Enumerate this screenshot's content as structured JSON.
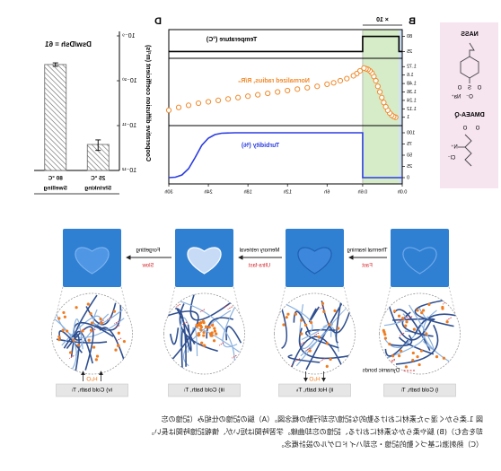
{
  "panel_labels": [
    "B",
    "D"
  ],
  "structures": [
    {
      "name": "NASS",
      "atoms": [
        "S",
        "O",
        "O",
        "O⁻",
        "Na⁺"
      ]
    },
    {
      "name": "DMAEA-Q",
      "atoms": [
        "O",
        "O",
        "N⁺",
        "Cl⁻"
      ]
    }
  ],
  "chart_data": [
    {
      "type": "line",
      "xlim": [
        0,
        30
      ],
      "xticks": [
        {
          "value": 0,
          "label": "0.0h"
        },
        {
          "value": 0.6,
          "label": "0.6h"
        },
        {
          "value": 6,
          "label": "6h"
        },
        {
          "value": 12,
          "label": "12h"
        },
        {
          "value": 18,
          "label": "18h"
        },
        {
          "value": 24,
          "label": "24h"
        },
        {
          "value": 30,
          "label": "30h"
        }
      ],
      "zoom": {
        "range": [
          0,
          0.6
        ],
        "factor": {
          "value": 10,
          "label": "× 10"
        }
      },
      "spans": [
        {
          "x": [
            0,
            0.05
          ],
          "color": "#cfe0f6"
        },
        {
          "x": [
            0.05,
            0.6
          ],
          "color": "#d6ecc9"
        }
      ],
      "panels": [
        {
          "label": "Temperature (°C)",
          "label_color": "#000",
          "ylim": [
            10,
            95
          ],
          "yticks": [
            25,
            80
          ],
          "series": [
            {
              "color": "#000",
              "marker": "none",
              "x": [
                0,
                0.05,
                0.05,
                0.6,
                0.6,
                30
              ],
              "values": [
                25,
                25,
                80,
                80,
                25,
                25
              ]
            }
          ]
        },
        {
          "label": "Normalized radius, R/R₀",
          "label_color": "#f08a2c",
          "ylim": [
            0.92,
            1.8
          ],
          "yticks": [
            1.0,
            1.12,
            1.24,
            1.36,
            1.48,
            1.6,
            1.72
          ],
          "series": [
            {
              "color": "#f08a2c",
              "marker": "circle",
              "x": [
                0.1,
                0.13,
                0.16,
                0.19,
                0.22,
                0.25,
                0.28,
                0.31,
                0.34,
                0.37,
                0.4,
                0.43,
                0.46,
                0.49,
                0.52,
                0.55,
                0.58,
                1,
                1.5,
                2,
                3,
                4,
                5,
                6,
                7.5,
                9,
                10.5,
                12,
                13.5,
                15,
                16.5,
                18,
                19.5,
                21,
                22.5,
                24,
                25.5,
                27,
                28.5,
                30
              ],
              "values": [
                1.0,
                1.01,
                1.03,
                1.06,
                1.1,
                1.15,
                1.21,
                1.28,
                1.36,
                1.44,
                1.52,
                1.58,
                1.63,
                1.66,
                1.68,
                1.69,
                1.7,
                1.66,
                1.62,
                1.59,
                1.55,
                1.52,
                1.49,
                1.47,
                1.44,
                1.42,
                1.4,
                1.38,
                1.36,
                1.34,
                1.32,
                1.3,
                1.28,
                1.26,
                1.24,
                1.22,
                1.2,
                1.17,
                1.14,
                1.1
              ]
            }
          ]
        },
        {
          "label": "Turbidity (%)",
          "label_color": "#2b3de0",
          "ylim": [
            -8,
            110
          ],
          "yticks": [
            0,
            25,
            50,
            75,
            100
          ],
          "series": [
            {
              "color": "#2b3de0",
              "marker": "none",
              "x": [
                0,
                0.6,
                0.6,
                20,
                22,
                23,
                24,
                25,
                26,
                27,
                28,
                29,
                30
              ],
              "values": [
                0,
                0,
                100,
                100,
                99,
                96,
                88,
                72,
                45,
                20,
                6,
                1,
                0
              ]
            }
          ]
        }
      ]
    },
    {
      "type": "bar",
      "log": true,
      "annotation": "Dsw/Dsh = 61",
      "ylabel": "Cooperative diffusion coefficient (m²/s)",
      "ylim": [
        1e-12,
        1e-09
      ],
      "yticks": [
        {
          "value": 1e-12,
          "label": "10⁻¹²"
        },
        {
          "value": 1e-11,
          "label": "10⁻¹¹"
        },
        {
          "value": 1e-10,
          "label": "10⁻¹⁰"
        },
        {
          "value": 1e-09,
          "label": "10⁻⁹"
        }
      ],
      "categories": [
        "25 °C",
        "80 °C"
      ],
      "category_notes": [
        "Shrinking",
        "Swelling"
      ],
      "values": [
        3.8e-12,
        2.3e-10
      ],
      "errors": [
        1e-12,
        2e-11
      ],
      "color": "#666"
    }
  ],
  "schematic": {
    "states": [
      "i) Cold bath, Tₗ",
      "ii) Hot bath, Tₕ",
      "iii) Cold bath, Tₗ",
      "iv) Cold bath, Tₗ"
    ],
    "transitions": [
      {
        "label": "Thermal learning",
        "speed": "Fast"
      },
      {
        "label": "Memory retrieval",
        "speed": "Ultra-fast"
      },
      {
        "label": "Forgetting",
        "speed": "Slow"
      }
    ],
    "legend": "Dynamic bonds",
    "water": [
      "H₂O",
      "H₂O"
    ]
  },
  "caption": [
    "図 1.柔らかく湿った素材における動的な記憶/忘却行動の概念図。（A）脳の記憶の仕組み（記憶の忘",
    "却を含む）(B) 脳や柔らかな素材における、記憶の忘却曲線。学習時間は短いが、情報記憶時間は長い。",
    "（C）熱刺激に基づく動的記憶・忘却ハイドロゲルの設計概念。"
  ]
}
